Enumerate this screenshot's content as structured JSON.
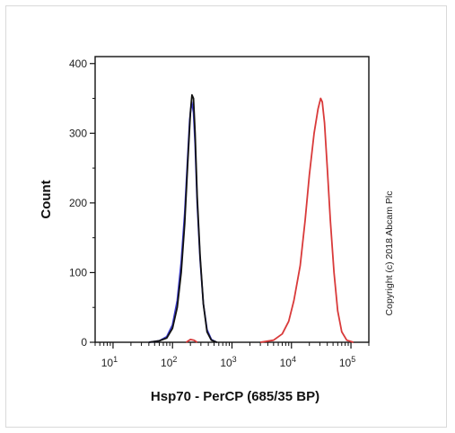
{
  "chart_data": {
    "type": "line",
    "xscale": "log",
    "xlabel": "Hsp70 - PerCP (685/35 BP)",
    "ylabel": "Count",
    "xlim": [
      5,
      200000
    ],
    "ylim": [
      0,
      410
    ],
    "yticks": [
      0,
      100,
      200,
      300,
      400
    ],
    "xticks": [
      {
        "value": 10,
        "base": "10",
        "exp": "1"
      },
      {
        "value": 100,
        "base": "10",
        "exp": "2"
      },
      {
        "value": 1000,
        "base": "10",
        "exp": "3"
      },
      {
        "value": 10000,
        "base": "10",
        "exp": "4"
      },
      {
        "value": 100000,
        "base": "10",
        "exp": "5"
      }
    ],
    "grid": false,
    "series": [
      {
        "color": "#3a3acc",
        "x": [
          40,
          60,
          80,
          100,
          120,
          140,
          160,
          180,
          195,
          210,
          225,
          240,
          260,
          290,
          330,
          380,
          450,
          550
        ],
        "y": [
          0,
          2,
          8,
          25,
          60,
          115,
          185,
          265,
          320,
          345,
          330,
          285,
          200,
          120,
          55,
          18,
          4,
          0
        ]
      },
      {
        "color": "#111111",
        "x": [
          40,
          60,
          80,
          100,
          120,
          140,
          160,
          180,
          200,
          212,
          225,
          240,
          260,
          290,
          330,
          380,
          450,
          560
        ],
        "y": [
          0,
          2,
          6,
          20,
          50,
          100,
          170,
          255,
          330,
          355,
          350,
          300,
          210,
          125,
          55,
          15,
          3,
          0
        ]
      },
      {
        "color": "#d93a3a",
        "x": [
          3000,
          5000,
          7000,
          9000,
          11000,
          14000,
          17000,
          20000,
          24000,
          28000,
          31000,
          33000,
          36000,
          40000,
          45000,
          52000,
          60000,
          70000,
          85000,
          110000
        ],
        "y": [
          0,
          3,
          12,
          30,
          60,
          110,
          175,
          240,
          300,
          335,
          350,
          345,
          315,
          250,
          175,
          100,
          45,
          15,
          3,
          0
        ]
      },
      {
        "color": "#d93a3a",
        "x": [
          170,
          200,
          230,
          260
        ],
        "y": [
          0,
          4,
          3,
          0
        ]
      }
    ]
  },
  "copyright": "Copyright (c) 2018 Abcam Plc"
}
